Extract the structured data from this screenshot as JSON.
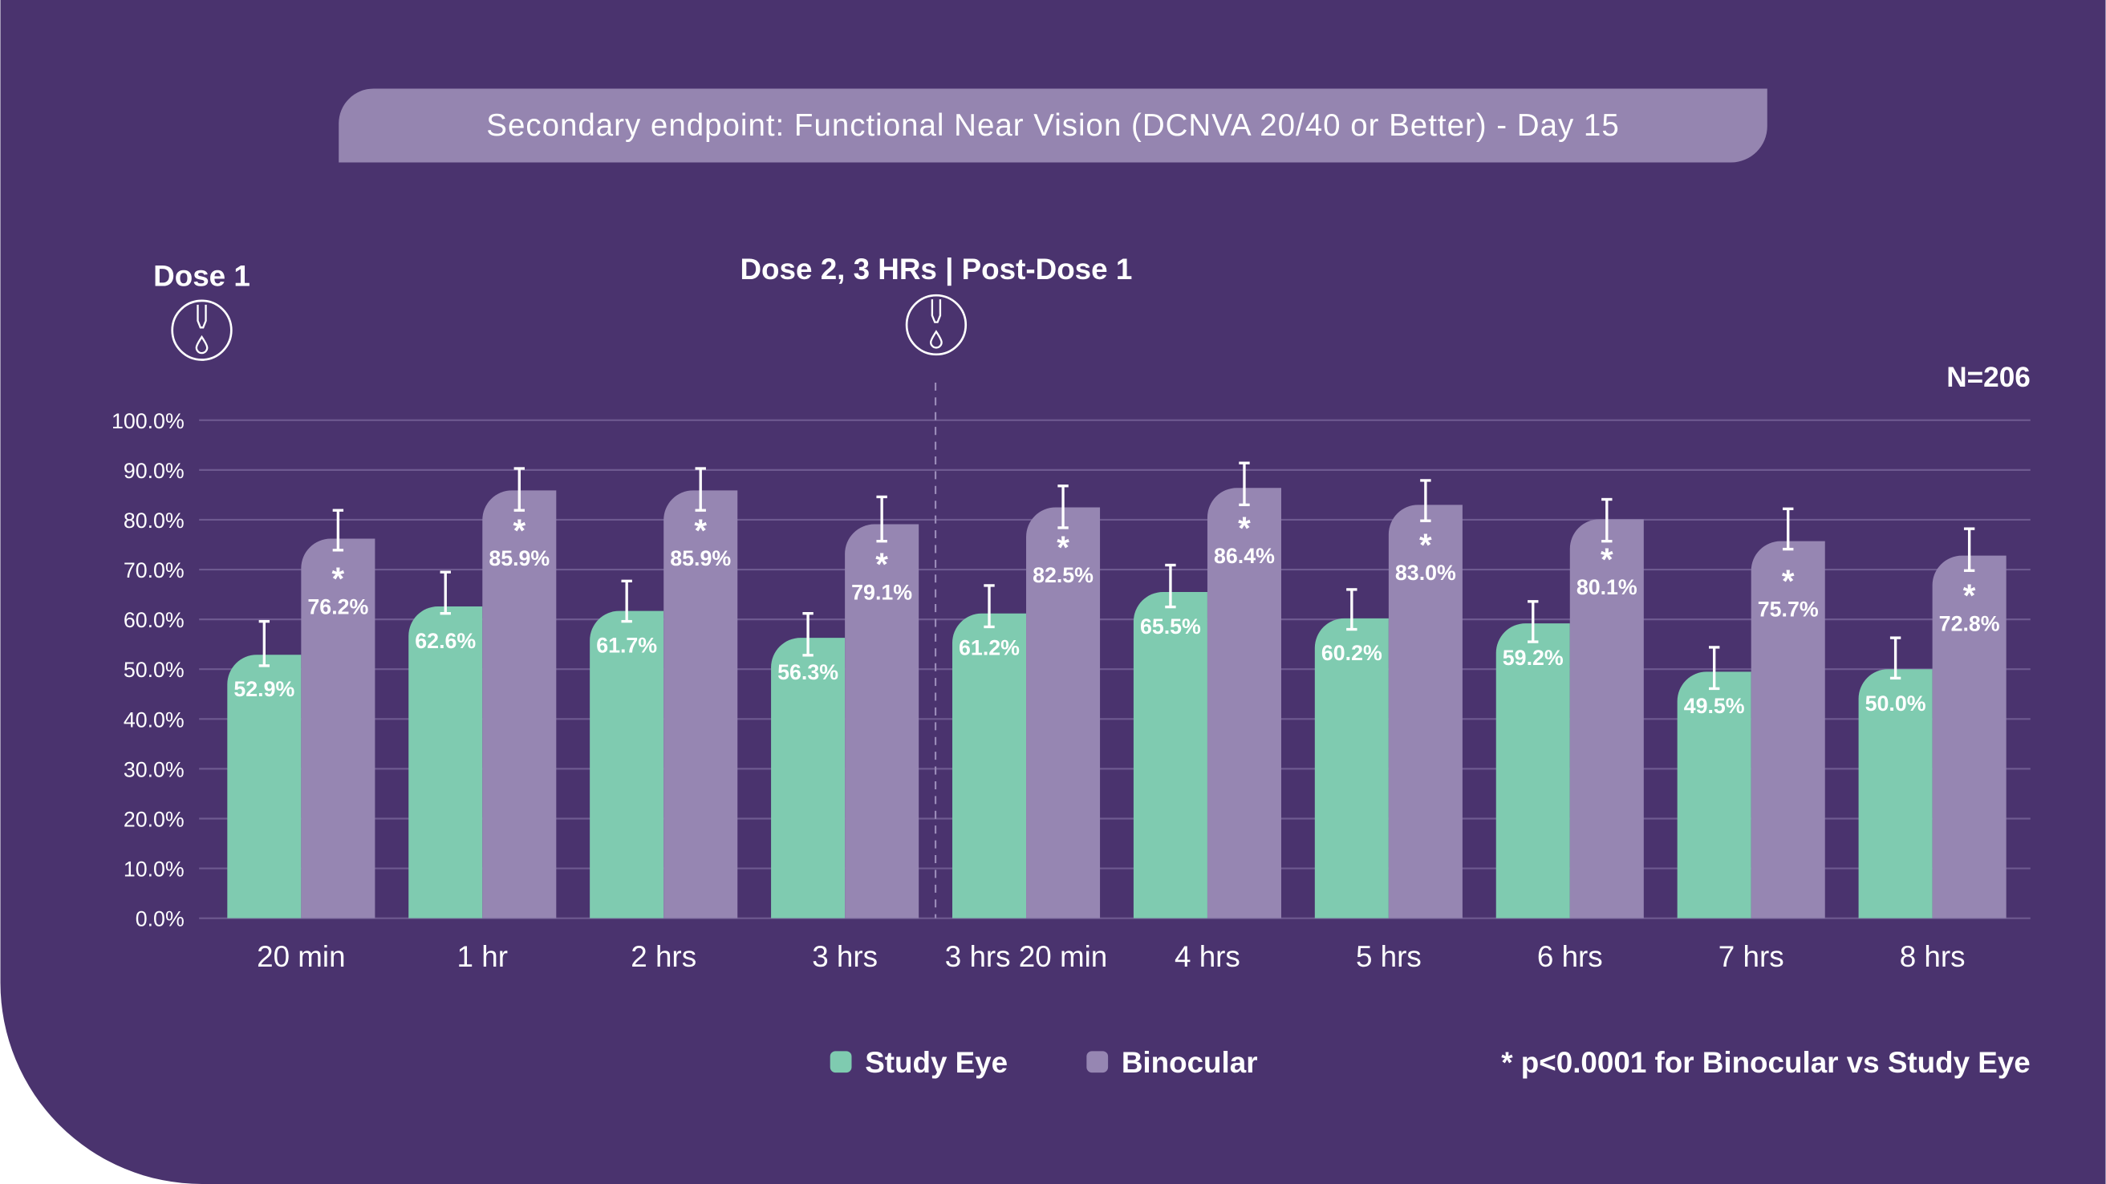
{
  "title": "Secondary endpoint: Functional Near Vision (DCNVA 20/40 or Better) - Day 15",
  "annotations": {
    "dose1": "Dose 1",
    "dose2": "Dose 2, 3 HRs | Post-Dose 1",
    "n": "N=206",
    "footnote": "* p<0.0001 for Binocular vs Study Eye",
    "significance_marker": "*"
  },
  "icons": [
    "eye-dropper-icon",
    "eye-dropper-icon"
  ],
  "colors": {
    "background": "#4a336e",
    "title_pill": "#9585b0",
    "study_eye": "#7fcbb0",
    "binocular": "#9686b2",
    "grid": "#6e5a90"
  },
  "chart_data": {
    "type": "bar",
    "title": "Secondary endpoint: Functional Near Vision (DCNVA 20/40 or Better) - Day 15",
    "xlabel": "",
    "ylabel": "",
    "ylim": [
      0,
      100
    ],
    "yticks": [
      "0.0%",
      "10.0%",
      "20.0%",
      "30.0%",
      "40.0%",
      "50.0%",
      "60.0%",
      "70.0%",
      "80.0%",
      "90.0%",
      "100.0%"
    ],
    "grid": true,
    "legend_position": "bottom",
    "categories": [
      "20 min",
      "1 hr",
      "2 hrs",
      "3 hrs",
      "3 hrs 20 min",
      "4 hrs",
      "5 hrs",
      "6 hrs",
      "7 hrs",
      "8 hrs"
    ],
    "reference_line_after_category": "3 hrs",
    "series": [
      {
        "name": "Study Eye",
        "values": [
          52.9,
          62.6,
          61.7,
          56.3,
          61.2,
          65.5,
          60.2,
          59.2,
          49.5,
          50.0
        ],
        "labels": [
          "52.9%",
          "62.6%",
          "61.7%",
          "56.3%",
          "61.2%",
          "65.5%",
          "60.2%",
          "59.2%",
          "49.5%",
          "50.0%"
        ],
        "error_high": [
          59.6,
          69.5,
          67.7,
          61.2,
          66.8,
          70.9,
          66.0,
          63.6,
          54.4,
          56.3
        ],
        "error_low": [
          50.7,
          61.2,
          59.6,
          52.8,
          58.5,
          62.5,
          58.0,
          55.5,
          46.1,
          48.2
        ]
      },
      {
        "name": "Binocular",
        "values": [
          76.2,
          85.9,
          85.9,
          79.1,
          82.5,
          86.4,
          83.0,
          80.1,
          75.7,
          72.8
        ],
        "labels": [
          "76.2%",
          "85.9%",
          "85.9%",
          "79.1%",
          "82.5%",
          "86.4%",
          "83.0%",
          "80.1%",
          "75.7%",
          "72.8%"
        ],
        "significant": [
          true,
          true,
          true,
          true,
          true,
          true,
          true,
          true,
          true,
          true
        ],
        "error_high": [
          81.9,
          90.3,
          90.3,
          84.6,
          86.8,
          91.4,
          87.9,
          84.1,
          82.2,
          78.2
        ],
        "error_low": [
          73.9,
          81.9,
          81.9,
          75.7,
          78.4,
          83.0,
          79.8,
          75.7,
          74.1,
          69.8
        ]
      }
    ]
  }
}
